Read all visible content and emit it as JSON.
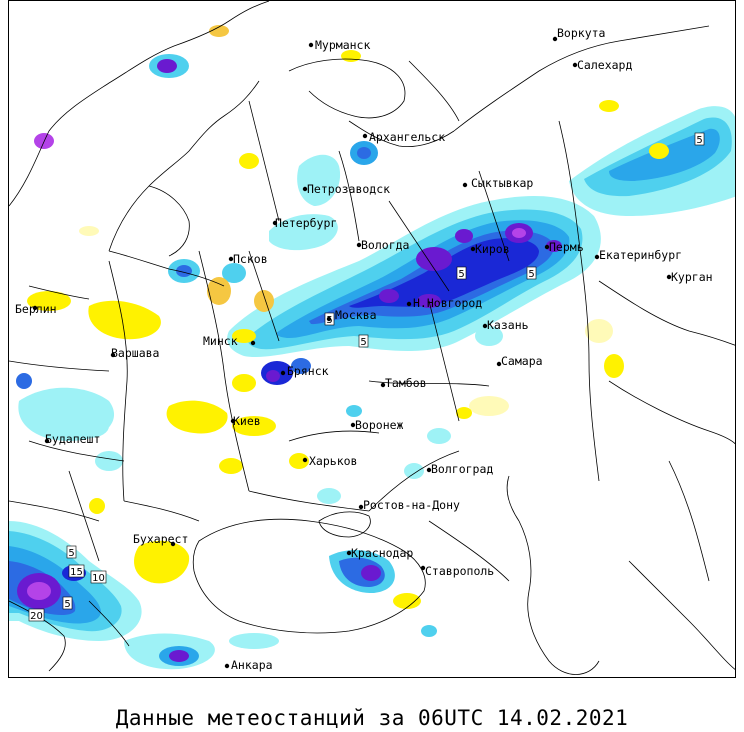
{
  "caption": "Данные метеостанций за 06UTC 14.02.2021",
  "colors": {
    "light_cyan": "#9ef2f6",
    "cyan": "#4fd0ee",
    "mid_blue": "#2aa6ea",
    "blue": "#2c6be3",
    "dark_blue": "#1a28d6",
    "purple": "#6a1ad0",
    "magenta": "#b443e8",
    "yellow": "#fff200",
    "pale_yellow": "#fffab8",
    "gold": "#f5c742"
  },
  "cities": [
    {
      "id": "murmansk",
      "name": "Мурманск"
    },
    {
      "id": "vorkuta",
      "name": "Воркута"
    },
    {
      "id": "salekhard",
      "name": "Салехард"
    },
    {
      "id": "arkhangelsk",
      "name": "Архангельск"
    },
    {
      "id": "petrozavodsk",
      "name": "Петрозаводск"
    },
    {
      "id": "syktyvkar",
      "name": "Сыктывкар"
    },
    {
      "id": "peterburg",
      "name": "Петербург"
    },
    {
      "id": "vologda",
      "name": "Вологда"
    },
    {
      "id": "kirov",
      "name": "Киров"
    },
    {
      "id": "perm",
      "name": "Пермь"
    },
    {
      "id": "ekaterinburg",
      "name": "Екатеринбург"
    },
    {
      "id": "kurgan",
      "name": "Курган"
    },
    {
      "id": "pskov",
      "name": "Псков"
    },
    {
      "id": "berlin",
      "name": "Берлин"
    },
    {
      "id": "moskva",
      "name": "Москва"
    },
    {
      "id": "nnovgorod",
      "name": "Н.Новгород"
    },
    {
      "id": "kazan",
      "name": "Казань"
    },
    {
      "id": "minsk",
      "name": "Минск"
    },
    {
      "id": "varshava",
      "name": "Варшава"
    },
    {
      "id": "samara",
      "name": "Самара"
    },
    {
      "id": "bryansk",
      "name": "Брянск"
    },
    {
      "id": "tambov",
      "name": "Тамбов"
    },
    {
      "id": "kiev",
      "name": "Киев"
    },
    {
      "id": "voronezh",
      "name": "Воронеж"
    },
    {
      "id": "budapesht",
      "name": "Будапешт"
    },
    {
      "id": "kharkov",
      "name": "Харьков"
    },
    {
      "id": "volgograd",
      "name": "Волгоград"
    },
    {
      "id": "rostov",
      "name": "Ростов-на-Дону"
    },
    {
      "id": "bukharest",
      "name": "Бухарест"
    },
    {
      "id": "krasnodar",
      "name": "Краснодар"
    },
    {
      "id": "stavropol",
      "name": "Ставрополь"
    },
    {
      "id": "ankara",
      "name": "Анкара"
    }
  ],
  "contour_labels": [
    {
      "id": "c5-ural",
      "text": "5"
    },
    {
      "id": "c5-kirov",
      "text": "5"
    },
    {
      "id": "c5-perm",
      "text": "5"
    },
    {
      "id": "c5-moscow-w",
      "text": "5"
    },
    {
      "id": "c5-moscow-s",
      "text": "5"
    },
    {
      "id": "c5-balkan-top",
      "text": "5"
    },
    {
      "id": "c15-balkan",
      "text": "15"
    },
    {
      "id": "c10-balkan",
      "text": "10"
    },
    {
      "id": "c5-balkan-mid",
      "text": "5"
    },
    {
      "id": "c20-balkan",
      "text": "20"
    }
  ]
}
